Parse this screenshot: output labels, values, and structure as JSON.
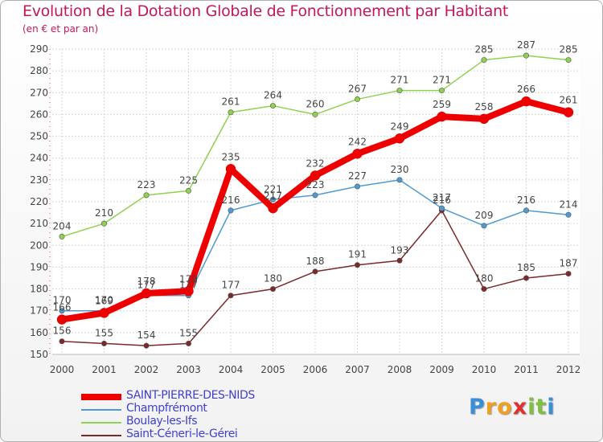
{
  "chart_data": {
    "type": "line",
    "title": "Evolution de la Dotation Globale de Fonctionnement par Habitant",
    "subtitle": "(en € et par an)",
    "xlabel": "",
    "ylabel": "",
    "ylim": [
      150,
      290
    ],
    "ytick_step": 10,
    "grid": true,
    "legend_position": "bottom-left",
    "categories": [
      "2000",
      "2001",
      "2002",
      "2003",
      "2004",
      "2005",
      "2006",
      "2007",
      "2008",
      "2009",
      "2010",
      "2011",
      "2012"
    ],
    "series": [
      {
        "name": "SAINT-PIERRE-DES-NIDS",
        "color": "#ee0000",
        "values": [
          166,
          169,
          178,
          179,
          235,
          217,
          232,
          242,
          249,
          259,
          258,
          266,
          261
        ]
      },
      {
        "name": "Champfrémont",
        "color": "#4f9bd1",
        "values": [
          170,
          170,
          177,
          177,
          216,
          221,
          223,
          227,
          230,
          217,
          209,
          216,
          214
        ]
      },
      {
        "name": "Boulay-les-Ifs",
        "color": "#8ed24e",
        "values": [
          204,
          210,
          223,
          225,
          261,
          264,
          260,
          267,
          271,
          271,
          285,
          287,
          285
        ]
      },
      {
        "name": "Saint-Céneri-le-Gérei",
        "color": "#7a2a2a",
        "values": [
          156,
          155,
          154,
          155,
          177,
          180,
          188,
          191,
          193,
          216,
          180,
          185,
          187
        ]
      }
    ]
  },
  "logo": {
    "letters": [
      "P",
      "r",
      "o",
      "x",
      "i",
      "t",
      "i"
    ],
    "colors": [
      "#3a8fd8",
      "#f0a020",
      "#f0a020",
      "#e03030",
      "#80c040",
      "#80c040",
      "#3a8fd8"
    ]
  }
}
